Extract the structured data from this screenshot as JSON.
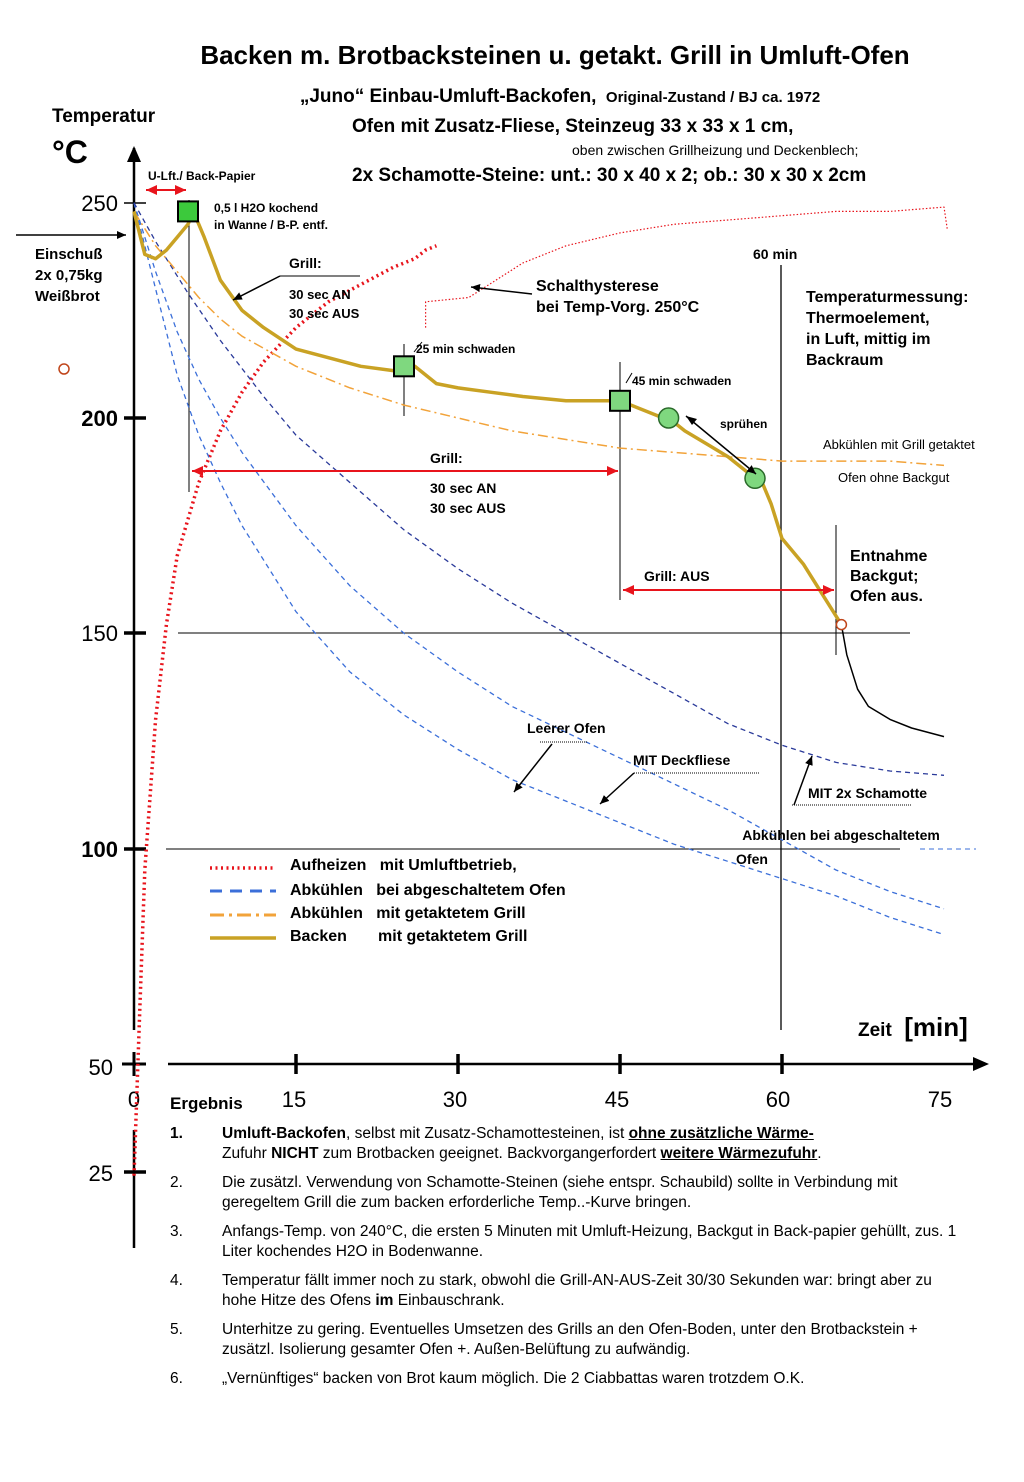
{
  "page": {
    "title": "Backen m. Brotbacksteinen u. getakt. Grill in Umluft-Ofen",
    "subtitle1_main": "„Juno“ Einbau-Umluft-Backofen,",
    "subtitle1_rest": "Original-Zustand / BJ ca. 1972",
    "subtitle2": "Ofen mit Zusatz-Fliese,  Steinzeug 33 x 33 x 1 cm,",
    "subtitle2_note": "oben zwischen Grillheizung und Deckenblech;",
    "subtitle3": "2x Schamotte-Steine: unt.: 30 x 40 x 2; ob.: 30 x 30 x 2cm",
    "info_box": [
      "Temperaturmessung:",
      "Thermoelement,",
      "in Luft, mittig im",
      "Backraum"
    ]
  },
  "chart_data": {
    "type": "line",
    "ylabel": "Temperatur",
    "yunit": "°C",
    "xlabel": "Zeit",
    "xunit": "[min]",
    "x_ticks": [
      "0",
      "15",
      "30",
      "45",
      "60",
      "75"
    ],
    "y_ticks": [
      "250",
      "200",
      "150",
      "100",
      "50",
      "25"
    ],
    "xlim": [
      0,
      75
    ],
    "ylim": [
      20,
      260
    ],
    "hlines": [
      150,
      100
    ],
    "vline_label": "60 min",
    "series": [
      {
        "name": "Aufheizen   mit Umluftbetrieb,",
        "color": "#e8141c",
        "dash": "dotted",
        "points": [
          [
            0,
            24
          ],
          [
            0.5,
            60
          ],
          [
            1,
            95
          ],
          [
            2,
            130
          ],
          [
            3,
            152
          ],
          [
            4,
            168
          ],
          [
            6,
            185
          ],
          [
            8,
            197
          ],
          [
            10,
            206
          ],
          [
            12,
            213
          ],
          [
            15,
            221
          ],
          [
            18,
            227
          ],
          [
            21,
            231
          ],
          [
            24,
            235
          ],
          [
            26,
            237
          ],
          [
            27,
            239
          ],
          [
            28,
            240
          ]
        ]
      },
      {
        "name": "Aufheizen – Schalthysterese",
        "color": "#e8141c",
        "dash": "hysteresis",
        "points": [
          [
            27,
            221
          ],
          [
            27,
            227
          ],
          [
            31,
            228
          ],
          [
            36,
            236
          ],
          [
            40,
            240
          ],
          [
            45,
            243
          ],
          [
            50,
            245
          ],
          [
            55,
            246
          ],
          [
            60,
            247
          ],
          [
            65,
            248
          ],
          [
            70,
            248
          ],
          [
            75,
            249
          ],
          [
            75.3,
            244
          ]
        ]
      },
      {
        "name": "Abkühlen   bei abgeschaltetem Ofen (Leerer Ofen)",
        "color": "#3b6fd9",
        "dash": "dashed",
        "points": [
          [
            0,
            250
          ],
          [
            2,
            230
          ],
          [
            4,
            210
          ],
          [
            6,
            196
          ],
          [
            8,
            185
          ],
          [
            10,
            175
          ],
          [
            15,
            155
          ],
          [
            20,
            141
          ],
          [
            25,
            131
          ],
          [
            30,
            123
          ],
          [
            35,
            116
          ],
          [
            40,
            111
          ],
          [
            45,
            106
          ],
          [
            50,
            101
          ],
          [
            55,
            97
          ],
          [
            60,
            93
          ],
          [
            65,
            89
          ],
          [
            70,
            84
          ],
          [
            75,
            80
          ]
        ]
      },
      {
        "name": "Abkühlen   bei abgeschaltetem Ofen (MIT Deckfliese)",
        "color": "#3b6fd9",
        "dash": "dashed",
        "points": [
          [
            0,
            250
          ],
          [
            2,
            234
          ],
          [
            4,
            220
          ],
          [
            6,
            209
          ],
          [
            8,
            200
          ],
          [
            10,
            192
          ],
          [
            15,
            175
          ],
          [
            20,
            161
          ],
          [
            25,
            150
          ],
          [
            30,
            141
          ],
          [
            35,
            133
          ],
          [
            40,
            127
          ],
          [
            45,
            121
          ],
          [
            50,
            115
          ],
          [
            55,
            109
          ],
          [
            60,
            102
          ],
          [
            65,
            95
          ],
          [
            70,
            90
          ],
          [
            75,
            86
          ]
        ]
      },
      {
        "name": "Abkühlen   bei abgeschaltetem Ofen (MIT 2x Schamotte)",
        "color": "#2a3a9a",
        "dash": "dashed",
        "points": [
          [
            0,
            250
          ],
          [
            2,
            241
          ],
          [
            5,
            229
          ],
          [
            8,
            218
          ],
          [
            12,
            205
          ],
          [
            15,
            196
          ],
          [
            20,
            185
          ],
          [
            25,
            174
          ],
          [
            30,
            165
          ],
          [
            35,
            157
          ],
          [
            40,
            150
          ],
          [
            45,
            143
          ],
          [
            50,
            136
          ],
          [
            55,
            129
          ],
          [
            60,
            124
          ],
          [
            65,
            120
          ],
          [
            70,
            118
          ],
          [
            75,
            117
          ]
        ]
      },
      {
        "name": "Abkühlen   mit getaktetem Grill",
        "color": "#f2a33a",
        "dash": "dashdot",
        "points": [
          [
            0,
            248
          ],
          [
            2,
            240
          ],
          [
            4,
            234
          ],
          [
            6,
            228
          ],
          [
            8,
            223
          ],
          [
            10,
            219
          ],
          [
            15,
            212
          ],
          [
            20,
            207
          ],
          [
            25,
            203
          ],
          [
            30,
            200
          ],
          [
            35,
            197
          ],
          [
            40,
            195
          ],
          [
            45,
            193
          ],
          [
            50,
            192
          ],
          [
            55,
            191
          ],
          [
            60,
            190
          ],
          [
            65,
            190
          ],
          [
            70,
            190
          ],
          [
            75,
            189
          ]
        ]
      },
      {
        "name": "Backen       mit getaktetem Grill",
        "color": "#c9a224",
        "dash": "solid",
        "points": [
          [
            0,
            248
          ],
          [
            0.4,
            244
          ],
          [
            1,
            238
          ],
          [
            2,
            237
          ],
          [
            3,
            239
          ],
          [
            4,
            242
          ],
          [
            5,
            245
          ],
          [
            5.5,
            248
          ],
          [
            6.5,
            242
          ],
          [
            8,
            232
          ],
          [
            10,
            225
          ],
          [
            12,
            221
          ],
          [
            15,
            216
          ],
          [
            18,
            214
          ],
          [
            21,
            212
          ],
          [
            24,
            211
          ],
          [
            26,
            212
          ],
          [
            28,
            208
          ],
          [
            30,
            207
          ],
          [
            33,
            206
          ],
          [
            36,
            205
          ],
          [
            40,
            204
          ],
          [
            44,
            204
          ],
          [
            45,
            204
          ],
          [
            47,
            202
          ],
          [
            49,
            200
          ],
          [
            50,
            199
          ],
          [
            51,
            197
          ],
          [
            53,
            194
          ],
          [
            55,
            191
          ],
          [
            57,
            187
          ],
          [
            58,
            186
          ],
          [
            59,
            180
          ],
          [
            60,
            172
          ],
          [
            62,
            166
          ],
          [
            64,
            158
          ],
          [
            65.5,
            152
          ]
        ]
      },
      {
        "name": "Abkühlen nach Entnahme",
        "color": "#000000",
        "dash": "solid",
        "points": [
          [
            65.5,
            152
          ],
          [
            66,
            145
          ],
          [
            67,
            137
          ],
          [
            68,
            133
          ],
          [
            70,
            130
          ],
          [
            72,
            128
          ],
          [
            75,
            126
          ]
        ]
      }
    ],
    "markers": [
      {
        "x": 5,
        "y": 248,
        "shape": "square",
        "fill": "#3cc93c"
      },
      {
        "x": 25,
        "y": 212,
        "shape": "square",
        "fill": "#7fd87f"
      },
      {
        "x": 45,
        "y": 204,
        "shape": "square",
        "fill": "#7fd87f"
      },
      {
        "x": 49.5,
        "y": 200,
        "shape": "circle",
        "fill": "#7fd87f"
      },
      {
        "x": 57.5,
        "y": 186,
        "shape": "circle",
        "fill": "#7fd87f"
      },
      {
        "x": 65.5,
        "y": 152,
        "shape": "open-circle",
        "fill": "#c0451a"
      }
    ],
    "annotations": {
      "einschuss": [
        "Einschuß",
        "2x 0,75kg",
        "Weißbrot"
      ],
      "u_lft": "U-Lft./ Back-Papier",
      "h2o": [
        "0,5 l H2O kochend",
        "in Wanne / B-P. entf."
      ],
      "grill1": [
        "Grill:",
        "30 sec AN",
        "30 sec AUS"
      ],
      "hysterese": [
        "Schalthysterese",
        "bei Temp-Vorg. 250°C"
      ],
      "schwaden25": "25 min schwaden",
      "schwaden45": "45 min schwaden",
      "spruehen": "sprühen",
      "grill2": [
        "Grill:",
        "30 sec AN",
        "30 sec AUS"
      ],
      "grill_aus": "Grill: AUS",
      "abkuehlen_grill": "Abkühlen  mit Grill  getaktet",
      "ofen_ohne": "Ofen ohne Backgut",
      "entnahme": [
        "Entnahme",
        "Backgut;",
        "Ofen aus."
      ],
      "leerer_ofen": "Leerer Ofen",
      "mit_deckfliese": "MIT Deckfliese",
      "mit_schamotte": "MIT 2x Schamotte",
      "abkuehlen_aus": [
        "Abkühlen bei abgeschaltetem",
        "Ofen"
      ]
    },
    "legend": [
      "Aufheizen   mit Umluftbetrieb,",
      "Abkühlen   bei abgeschaltetem Ofen",
      "Abkühlen   mit getaktetem Grill",
      "Backen       mit getaktetem Grill"
    ]
  },
  "results": {
    "title": "Ergebnis",
    "items": [
      {
        "num": "1.",
        "p1": "Umluft-Backofen",
        "p2": ", selbst mit Zusatz-Schamottesteinen, ist ",
        "p3": "ohne zusätzliche Wärme-",
        "p4": "Zufuhr ",
        "p5": "NICHT",
        "p6": " zum Brotbacken geeignet. Backvorgangerfordert ",
        "p7": "weitere Wärmezufuhr",
        "p8": "."
      },
      {
        "num": "2.",
        "text": "Die zusätzl. Verwendung von Schamotte-Steinen (siehe entspr. Schaubild) sollte in Verbindung mit geregeltem Grill die zum backen erforderliche Temp..-Kurve bringen."
      },
      {
        "num": "3.",
        "text": "Anfangs-Temp. von 240°C, die ersten 5 Minuten mit Umluft-Heizung, Backgut in Back-papier gehüllt, zus. 1 Liter kochendes H2O in Bodenwanne."
      },
      {
        "num": "4.",
        "p1": "Temperatur fällt immer noch zu stark, obwohl die  Grill-AN-AUS-Zeit 30/30 Sekunden war: bringt aber zu hohe Hitze des Ofens ",
        "p2": "im",
        "p3": " Einbauschrank."
      },
      {
        "num": "5.",
        "text": "Unterhitze zu gering. Eventuelles Umsetzen des Grills an den Ofen-Boden, unter den Brotbackstein + zusätzl. Isolierung gesamter Ofen +. Außen-Belüftung zu aufwändig."
      },
      {
        "num": "6.",
        "text": "„Vernünftiges“ backen von Brot kaum möglich. Die 2 Ciabbattas waren trotzdem O.K."
      }
    ]
  }
}
